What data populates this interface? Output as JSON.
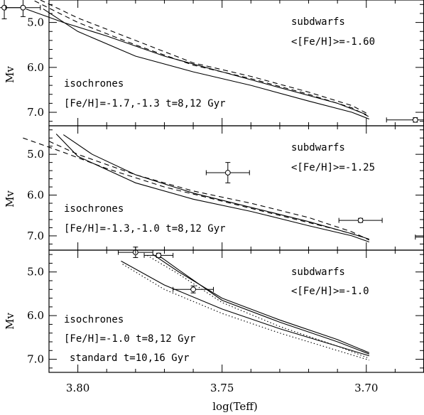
{
  "chart_data": {
    "type": "line",
    "xlabel": "log(Teff)",
    "ylabel": "Mv",
    "xlim": [
      3.81,
      3.68
    ],
    "x_ticks": [
      3.8,
      3.75,
      3.7
    ],
    "x_tick_labels": [
      "3.80",
      "3.75",
      "3.70"
    ],
    "y_reversed": true,
    "panels": [
      {
        "ylim": [
          4.5,
          7.3
        ],
        "y_ticks": [
          5.0,
          6.0,
          7.0
        ],
        "y_tick_labels": [
          "5.0",
          "6.0",
          "7.0"
        ],
        "annotations": {
          "subdwarfs": "subdwarfs",
          "feh_mean": "<[Fe/H]>=-1.60",
          "isochrones": "isochrones",
          "params": "[Fe/H]=-1.7,-1.3  t=8,12 Gyr"
        },
        "series": [
          {
            "style": "solid",
            "x": [
              3.812,
              3.8,
              3.78,
              3.76,
              3.74,
              3.72,
              3.705,
              3.699
            ],
            "y": [
              4.7,
              5.2,
              5.75,
              6.1,
              6.4,
              6.75,
              7.0,
              7.15
            ]
          },
          {
            "style": "solid",
            "x": [
              3.818,
              3.805,
              3.79,
              3.77,
              3.75,
              3.73,
              3.71,
              3.7
            ],
            "y": [
              4.7,
              5.0,
              5.3,
              5.75,
              6.1,
              6.45,
              6.8,
              7.05
            ]
          },
          {
            "style": "dashed",
            "x": [
              3.815,
              3.8,
              3.78,
              3.76,
              3.74,
              3.72,
              3.705,
              3.699
            ],
            "y": [
              4.52,
              5.0,
              5.5,
              5.95,
              6.25,
              6.6,
              6.9,
              7.1
            ]
          },
          {
            "style": "dashed",
            "x": [
              3.813,
              3.8,
              3.78,
              3.76,
              3.74,
              3.72,
              3.705,
              3.699
            ],
            "y": [
              4.5,
              4.9,
              5.4,
              5.9,
              6.2,
              6.55,
              6.85,
              7.05
            ]
          }
        ],
        "points": [
          {
            "x": 3.8255,
            "y": 4.67,
            "xerr": 0.006,
            "yerr": 0.25
          },
          {
            "x": 3.819,
            "y": 4.67,
            "xerr": 0.006,
            "yerr": 0.2
          },
          {
            "x": 3.683,
            "y": 7.17,
            "xerr": 0.01,
            "yerr": 0.05
          }
        ]
      },
      {
        "ylim": [
          4.3,
          7.35
        ],
        "y_ticks": [
          5.0,
          6.0,
          7.0
        ],
        "y_tick_labels": [
          "5.0",
          "6.0",
          "7.0"
        ],
        "annotations": {
          "subdwarfs": "subdwarfs",
          "feh_mean": "<[Fe/H]>=-1.25",
          "isochrones": "isochrones",
          "params": "[Fe/H]=-1.3,-1.0  t=8,12 Gyr"
        },
        "series": [
          {
            "style": "solid",
            "x": [
              3.8075,
              3.8,
              3.78,
              3.76,
              3.74,
              3.72,
              3.705,
              3.699
            ],
            "y": [
              4.5,
              5.05,
              5.7,
              6.1,
              6.4,
              6.75,
              7.0,
              7.15
            ]
          },
          {
            "style": "solid",
            "x": [
              3.805,
              3.795,
              3.78,
              3.76,
              3.74,
              3.72,
              3.705,
              3.699
            ],
            "y": [
              4.52,
              5.0,
              5.5,
              5.95,
              6.3,
              6.65,
              6.95,
              7.08
            ]
          },
          {
            "style": "dashed",
            "x": [
              3.819,
              3.805,
              3.79,
              3.77,
              3.75,
              3.73,
              3.71,
              3.7
            ],
            "y": [
              4.6,
              4.95,
              5.35,
              5.8,
              6.15,
              6.5,
              6.85,
              7.05
            ]
          },
          {
            "style": "dashed",
            "x": [
              3.81,
              3.8,
              3.78,
              3.76,
              3.74,
              3.72,
              3.705,
              3.699
            ],
            "y": [
              4.68,
              5.0,
              5.5,
              5.9,
              6.2,
              6.55,
              6.9,
              7.1
            ]
          }
        ],
        "points": [
          {
            "x": 3.748,
            "y": 5.45,
            "xerr": 0.0075,
            "yerr": 0.25
          },
          {
            "x": 3.702,
            "y": 6.62,
            "xerr": 0.0075,
            "yerr": 0.05
          },
          {
            "x": 3.677,
            "y": 7.03,
            "xerr": 0.006,
            "yerr": 0.12
          }
        ]
      },
      {
        "ylim": [
          4.5,
          7.3
        ],
        "y_ticks": [
          5.0,
          6.0,
          7.0
        ],
        "y_tick_labels": [
          "5.0",
          "6.0",
          "7.0"
        ],
        "annotations": {
          "subdwarfs": "subdwarfs",
          "feh_mean": "<[Fe/H]>=-1.0",
          "isochrones": "isochrones",
          "params": "[Fe/H]=-1.0  t=8,12 Gyr",
          "standard": "standard t=10,16 Gyr"
        },
        "series": [
          {
            "style": "solid",
            "x": [
              3.774,
              3.765,
              3.75,
              3.73,
              3.71,
              3.699
            ],
            "y": [
              4.6,
              5.0,
              5.6,
              6.1,
              6.55,
              6.85
            ]
          },
          {
            "style": "solid",
            "x": [
              3.7725,
              3.764,
              3.75,
              3.73,
              3.71,
              3.699
            ],
            "y": [
              4.6,
              5.0,
              5.65,
              6.15,
              6.6,
              6.88
            ]
          },
          {
            "style": "solid",
            "x": [
              3.785,
              3.77,
              3.75,
              3.73,
              3.71,
              3.699
            ],
            "y": [
              4.75,
              5.3,
              5.85,
              6.3,
              6.7,
              6.92
            ]
          },
          {
            "style": "dotted",
            "x": [
              3.776,
              3.765,
              3.75,
              3.73,
              3.71,
              3.699
            ],
            "y": [
              4.62,
              5.05,
              5.7,
              6.25,
              6.7,
              6.98
            ]
          },
          {
            "style": "dotted",
            "x": [
              3.7845,
              3.77,
              3.75,
              3.73,
              3.71,
              3.699
            ],
            "y": [
              4.82,
              5.4,
              5.95,
              6.4,
              6.8,
              7.02
            ]
          }
        ],
        "points": [
          {
            "x": 3.78,
            "y": 4.55,
            "xerr": 0.006,
            "yerr": 0.12
          },
          {
            "x": 3.772,
            "y": 4.62,
            "xerr": 0.005,
            "yerr": 0.05
          },
          {
            "x": 3.76,
            "y": 5.4,
            "xerr": 0.007,
            "yerr": 0.08
          }
        ]
      }
    ]
  }
}
